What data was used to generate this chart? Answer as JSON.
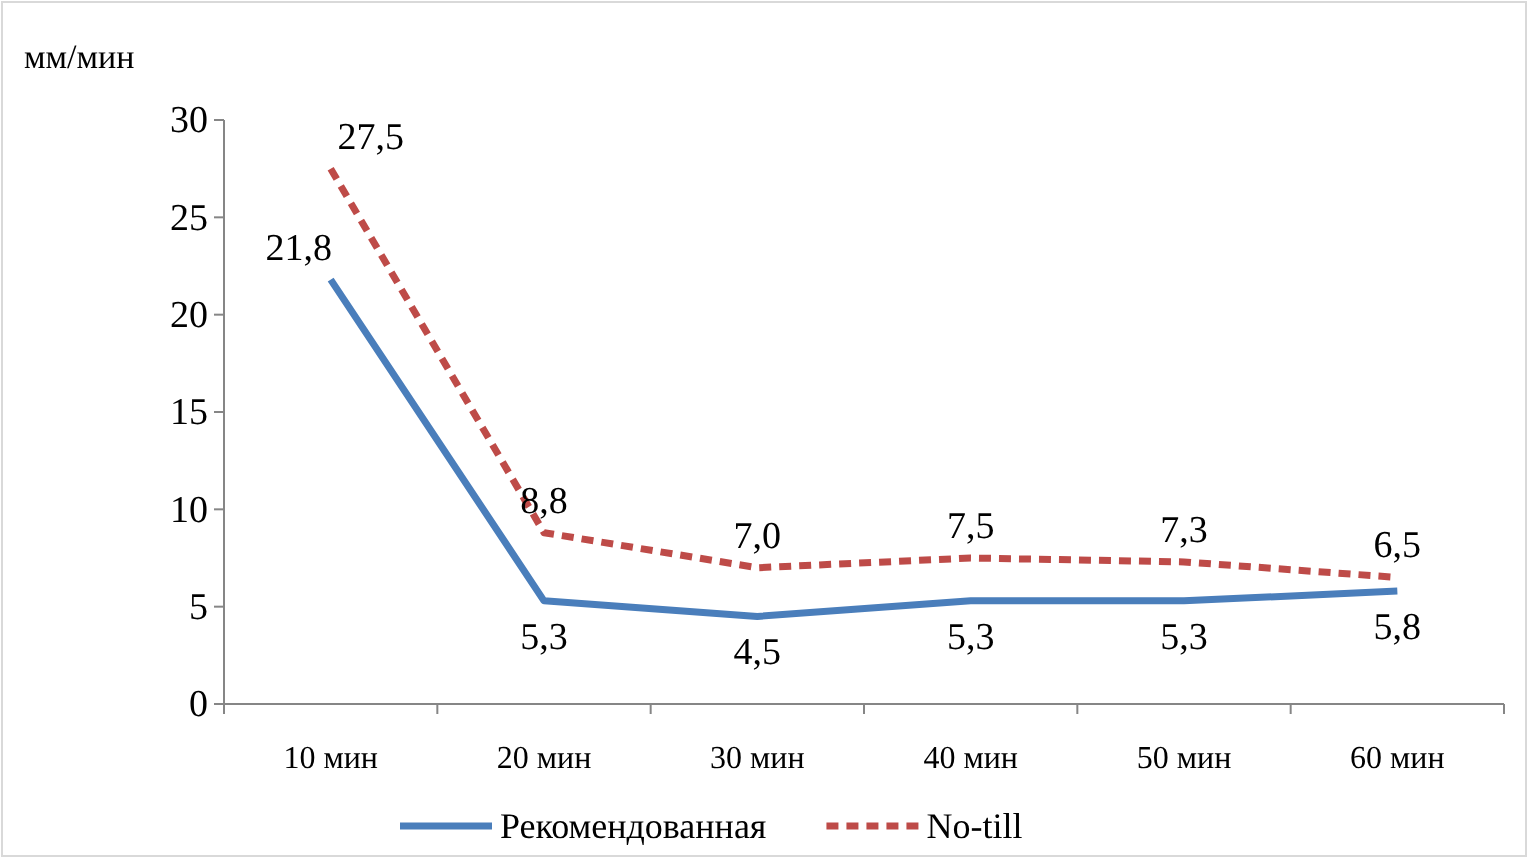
{
  "chart_data": {
    "type": "line",
    "ylabel": "мм/мин",
    "categories": [
      "10 мин",
      "20 мин",
      "30 мин",
      "40 мин",
      "50 мин",
      "60 мин"
    ],
    "series": [
      {
        "name": "Рекомендованная",
        "color": "#4a7ebb",
        "line_style": "solid",
        "values": [
          21.8,
          5.3,
          4.5,
          5.3,
          5.3,
          5.8
        ],
        "value_labels": [
          "21,8",
          "5,3",
          "4,5",
          "5,3",
          "5,3",
          "5,8"
        ]
      },
      {
        "name": "No-till",
        "color": "#be4b48",
        "line_style": "dashed",
        "values": [
          27.5,
          8.8,
          7.0,
          7.5,
          7.3,
          6.5
        ],
        "value_labels": [
          "27,5",
          "8,8",
          "7,0",
          "7,5",
          "7,3",
          "6,5"
        ]
      }
    ],
    "ylim": [
      0,
      30
    ],
    "yticks": [
      0,
      5,
      10,
      15,
      20,
      25,
      30
    ],
    "grid": false,
    "marker": "none",
    "legend": "bottom"
  }
}
